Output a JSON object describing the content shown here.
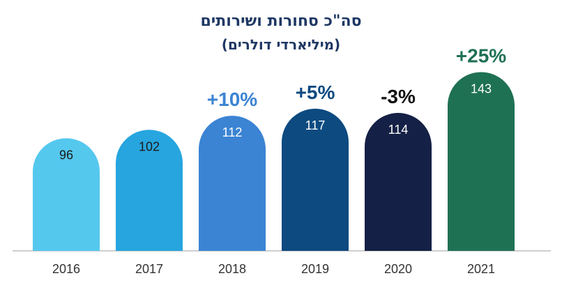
{
  "chart_data": {
    "type": "bar",
    "title": "סה\"כ סחורות ושירותים",
    "subtitle": "(מיליארדי דולרים)",
    "categories": [
      "2016",
      "2017",
      "2018",
      "2019",
      "2020",
      "2021"
    ],
    "values": [
      96,
      102,
      112,
      117,
      114,
      143
    ],
    "growth_labels": [
      "",
      "",
      "+10%",
      "+5%",
      "-3%",
      "+25%"
    ],
    "bar_colors": [
      "#55c8ee",
      "#27a5df",
      "#3b84d3",
      "#0c4a80",
      "#142045",
      "#1f7154"
    ],
    "value_text_colors": [
      "#1b1b1b",
      "#1b1b1b",
      "#ffffff",
      "#ffffff",
      "#ffffff",
      "#ffffff"
    ],
    "growth_colors": [
      "#000000",
      "#000000",
      "#3b84d3",
      "#0c4a80",
      "#111111",
      "#1f7154"
    ],
    "ylim": [
      0,
      150
    ],
    "xlabel": "",
    "ylabel": "",
    "grid": false
  }
}
